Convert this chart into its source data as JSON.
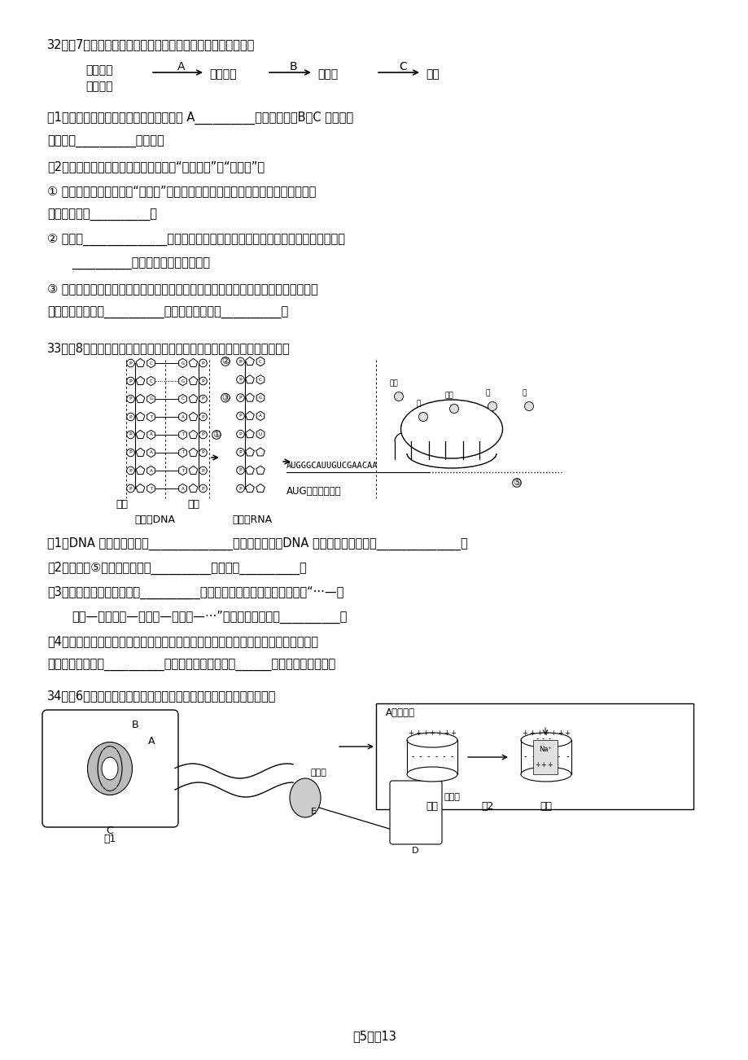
{
  "page_width": 9.2,
  "page_height": 13.02,
  "dpi": 100,
  "bg_color": "#ffffff",
  "ml": 0.58,
  "q32_title": "32．（7分）植物组织培养的过程如下图所示。请分析并回答：",
  "q33_title": "33．（8分）下图表示基因控制胰岛素合成过程的示意图，请分析并回答：",
  "q34_title": "34．（6分）下图为与人缩手反射相关结构的示意图，请分析并回答：",
  "q32_lines": [
    "（1）愈伤组织是由离体的组织或器官通过 A__________过程获得的，B、C 过程是通",
    "过细胞的__________实现的。",
    "（2）胚状体根据其来源不同，可以分为“体细胞胚”和“花粉胚”。",
    "① 用花药离体培养可获得“花粉胚”，同种植物的花粉胚与体细胞胚在染色体数目上",
    "的主要区别是__________。",
    "② 如果用______________处理二倍体植物的花粉胚，能获得可育的植株，该过程是",
    "__________育种中不可缺少的步骤。",
    "③ 在一定条件下培养离体细胞可以形成体细胞胚进而发育成完整的植株，其根本原因",
    "是每个细胞都含有__________，这一过程体现了__________。"
  ],
  "q33_lines": [
    "（1）DNA 分子基本骨架由______________交替排列构成，DNA 分子的多样性体现在______________。",
    "（2）在图中⑤结构中完成的是__________过程，即__________。",
    "（3）图中甘氨酸的密码子是__________，控制该蛋白合成的基因中，决定“···—甘",
    "氨酸—异亮氨酸—缬氨酸—谷氨酸—···”的模板链是图中的__________。",
    "（4）通过转基因技术，可以将人胰岛素基因转入大肠杆菌合成人胰岛素。形成重组质",
    "粒需要用到的酶有__________，其作用位点是图中的______处（填图中序号）。"
  ],
  "aug_label": "AUG为起始密码子",
  "page_num": "－5－／13"
}
